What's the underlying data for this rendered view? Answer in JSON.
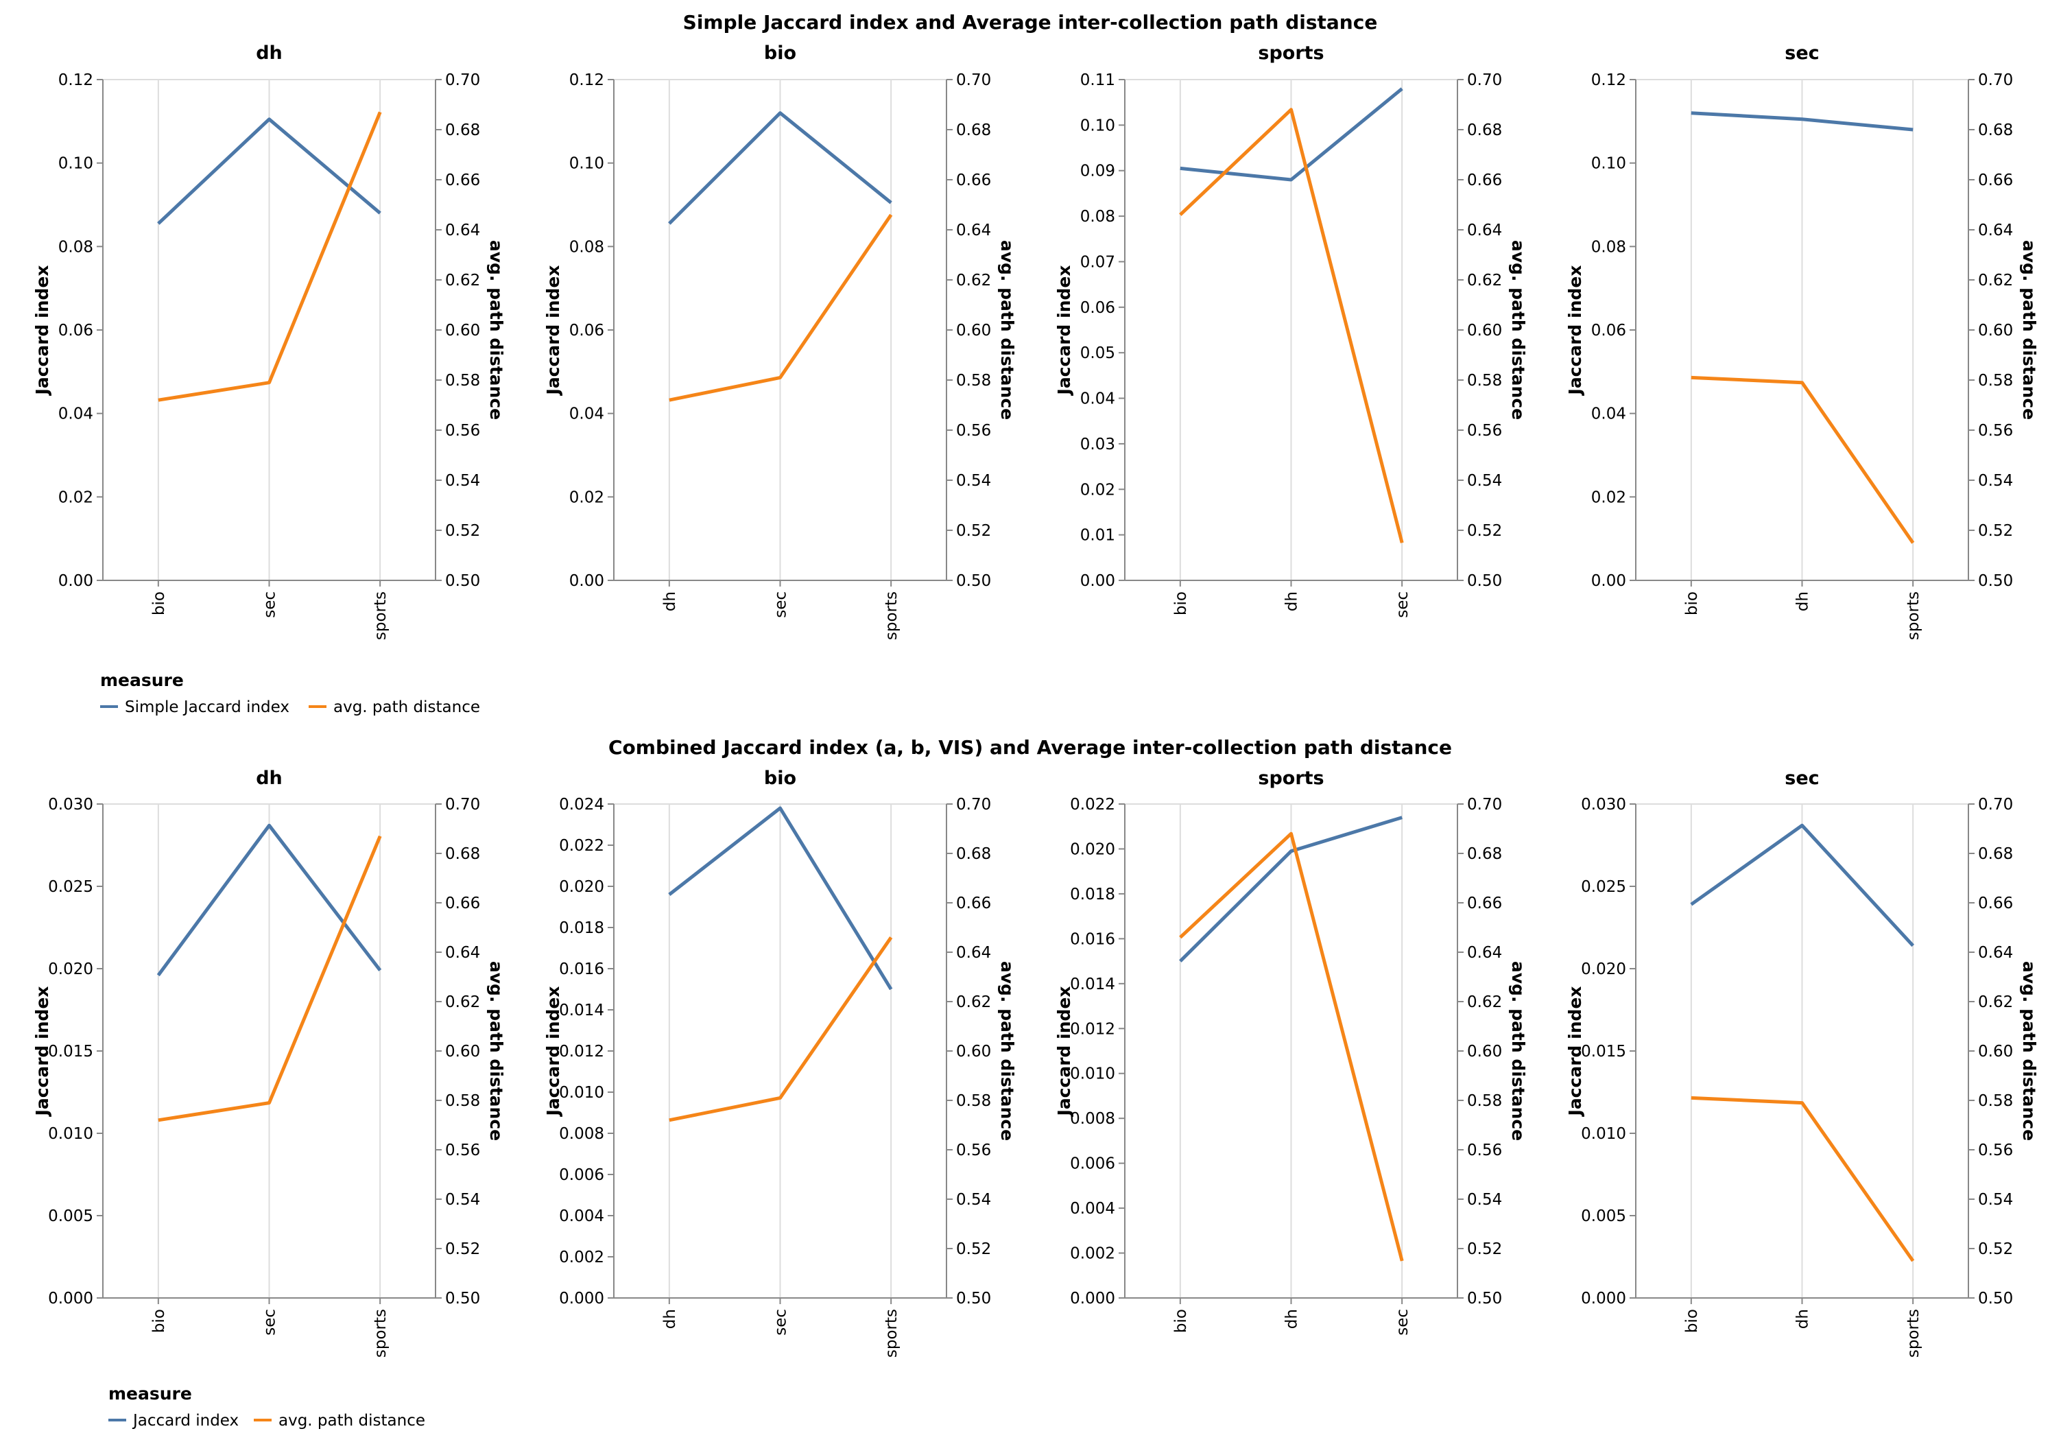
{
  "colors": {
    "jaccard": "#4c78a8",
    "path": "#f58518",
    "grid": "#dddddd",
    "axis": "#888888"
  },
  "chart_data": [
    {
      "type": "line",
      "title": "Simple Jaccard index and Average inter-collection path distance",
      "ylabel_left": "Jaccard index",
      "ylabel_right": "avg. path distance",
      "legend": {
        "title": "measure",
        "entries": [
          "Simple Jaccard index",
          "avg. path distance"
        ]
      },
      "panels": [
        {
          "title": "dh",
          "categories": [
            "bio",
            "sec",
            "sports"
          ],
          "ylim_left": [
            0,
            0.12
          ],
          "ticks_left": [
            "0.00",
            "0.02",
            "0.04",
            "0.06",
            "0.08",
            "0.10",
            "0.12"
          ],
          "ylim_right": [
            0.5,
            0.7
          ],
          "ticks_right": [
            "0.50",
            "0.52",
            "0.54",
            "0.56",
            "0.58",
            "0.60",
            "0.62",
            "0.64",
            "0.66",
            "0.68",
            "0.70"
          ],
          "series": [
            {
              "name": "Simple Jaccard index",
              "axis": "left",
              "values": [
                0.0855,
                0.1105,
                0.088
              ]
            },
            {
              "name": "avg. path distance",
              "axis": "right",
              "values": [
                0.572,
                0.579,
                0.687
              ]
            }
          ]
        },
        {
          "title": "bio",
          "categories": [
            "dh",
            "sec",
            "sports"
          ],
          "ylim_left": [
            0,
            0.12
          ],
          "ticks_left": [
            "0.00",
            "0.02",
            "0.04",
            "0.06",
            "0.08",
            "0.10",
            "0.12"
          ],
          "ylim_right": [
            0.5,
            0.7
          ],
          "ticks_right": [
            "0.50",
            "0.52",
            "0.54",
            "0.56",
            "0.58",
            "0.60",
            "0.62",
            "0.64",
            "0.66",
            "0.68",
            "0.70"
          ],
          "series": [
            {
              "name": "Simple Jaccard index",
              "axis": "left",
              "values": [
                0.0855,
                0.112,
                0.0905
              ]
            },
            {
              "name": "avg. path distance",
              "axis": "right",
              "values": [
                0.572,
                0.581,
                0.646
              ]
            }
          ]
        },
        {
          "title": "sports",
          "categories": [
            "bio",
            "dh",
            "sec"
          ],
          "ylim_left": [
            0,
            0.11
          ],
          "ticks_left": [
            "0.00",
            "0.01",
            "0.02",
            "0.03",
            "0.04",
            "0.05",
            "0.06",
            "0.07",
            "0.08",
            "0.09",
            "0.10",
            "0.11"
          ],
          "ylim_right": [
            0.5,
            0.7
          ],
          "ticks_right": [
            "0.50",
            "0.52",
            "0.54",
            "0.56",
            "0.58",
            "0.60",
            "0.62",
            "0.64",
            "0.66",
            "0.68",
            "0.70"
          ],
          "series": [
            {
              "name": "Simple Jaccard index",
              "axis": "left",
              "values": [
                0.0905,
                0.088,
                0.108
              ]
            },
            {
              "name": "avg. path distance",
              "axis": "right",
              "values": [
                0.646,
                0.688,
                0.515
              ]
            }
          ]
        },
        {
          "title": "sec",
          "categories": [
            "bio",
            "dh",
            "sports"
          ],
          "ylim_left": [
            0,
            0.12
          ],
          "ticks_left": [
            "0.00",
            "0.02",
            "0.04",
            "0.06",
            "0.08",
            "0.10",
            "0.12"
          ],
          "ylim_right": [
            0.5,
            0.7
          ],
          "ticks_right": [
            "0.50",
            "0.52",
            "0.54",
            "0.56",
            "0.58",
            "0.60",
            "0.62",
            "0.64",
            "0.66",
            "0.68",
            "0.70"
          ],
          "series": [
            {
              "name": "Simple Jaccard index",
              "axis": "left",
              "values": [
                0.112,
                0.1105,
                0.108
              ]
            },
            {
              "name": "avg. path distance",
              "axis": "right",
              "values": [
                0.581,
                0.579,
                0.515
              ]
            }
          ]
        }
      ]
    },
    {
      "type": "line",
      "title": "Combined Jaccard index (a, b, VIS) and Average inter-collection path distance",
      "ylabel_left": "Jaccard index",
      "ylabel_right": "avg. path distance",
      "legend": {
        "title": "measure",
        "entries": [
          "Jaccard index",
          "avg. path distance"
        ]
      },
      "panels": [
        {
          "title": "dh",
          "categories": [
            "bio",
            "sec",
            "sports"
          ],
          "ylim_left": [
            0,
            0.03
          ],
          "ticks_left": [
            "0.000",
            "0.005",
            "0.010",
            "0.015",
            "0.020",
            "0.025",
            "0.030"
          ],
          "ylim_right": [
            0.5,
            0.7
          ],
          "ticks_right": [
            "0.50",
            "0.52",
            "0.54",
            "0.56",
            "0.58",
            "0.60",
            "0.62",
            "0.64",
            "0.66",
            "0.68",
            "0.70"
          ],
          "series": [
            {
              "name": "Jaccard index",
              "axis": "left",
              "values": [
                0.0196,
                0.0287,
                0.0199
              ]
            },
            {
              "name": "avg. path distance",
              "axis": "right",
              "values": [
                0.572,
                0.579,
                0.687
              ]
            }
          ]
        },
        {
          "title": "bio",
          "categories": [
            "dh",
            "sec",
            "sports"
          ],
          "ylim_left": [
            0,
            0.024
          ],
          "ticks_left": [
            "0.000",
            "0.002",
            "0.004",
            "0.006",
            "0.008",
            "0.010",
            "0.012",
            "0.014",
            "0.016",
            "0.018",
            "0.020",
            "0.022",
            "0.024"
          ],
          "ylim_right": [
            0.5,
            0.7
          ],
          "ticks_right": [
            "0.50",
            "0.52",
            "0.54",
            "0.56",
            "0.58",
            "0.60",
            "0.62",
            "0.64",
            "0.66",
            "0.68",
            "0.70"
          ],
          "series": [
            {
              "name": "Jaccard index",
              "axis": "left",
              "values": [
                0.0196,
                0.0238,
                0.015
              ]
            },
            {
              "name": "avg. path distance",
              "axis": "right",
              "values": [
                0.572,
                0.581,
                0.646
              ]
            }
          ]
        },
        {
          "title": "sports",
          "categories": [
            "bio",
            "dh",
            "sec"
          ],
          "ylim_left": [
            0,
            0.022
          ],
          "ticks_left": [
            "0.000",
            "0.002",
            "0.004",
            "0.006",
            "0.008",
            "0.010",
            "0.012",
            "0.014",
            "0.016",
            "0.018",
            "0.020",
            "0.022"
          ],
          "ylim_right": [
            0.5,
            0.7
          ],
          "ticks_right": [
            "0.50",
            "0.52",
            "0.54",
            "0.56",
            "0.58",
            "0.60",
            "0.62",
            "0.64",
            "0.66",
            "0.68",
            "0.70"
          ],
          "series": [
            {
              "name": "Jaccard index",
              "axis": "left",
              "values": [
                0.015,
                0.0199,
                0.0214
              ]
            },
            {
              "name": "avg. path distance",
              "axis": "right",
              "values": [
                0.646,
                0.688,
                0.515
              ]
            }
          ]
        },
        {
          "title": "sec",
          "categories": [
            "bio",
            "dh",
            "sports"
          ],
          "ylim_left": [
            0,
            0.03
          ],
          "ticks_left": [
            "0.000",
            "0.005",
            "0.010",
            "0.015",
            "0.020",
            "0.025",
            "0.030"
          ],
          "ylim_right": [
            0.5,
            0.7
          ],
          "ticks_right": [
            "0.50",
            "0.52",
            "0.54",
            "0.56",
            "0.58",
            "0.60",
            "0.62",
            "0.64",
            "0.66",
            "0.68",
            "0.70"
          ],
          "series": [
            {
              "name": "Jaccard index",
              "axis": "left",
              "values": [
                0.0239,
                0.0287,
                0.0214
              ]
            },
            {
              "name": "avg. path distance",
              "axis": "right",
              "values": [
                0.581,
                0.579,
                0.515
              ]
            }
          ]
        }
      ]
    }
  ]
}
